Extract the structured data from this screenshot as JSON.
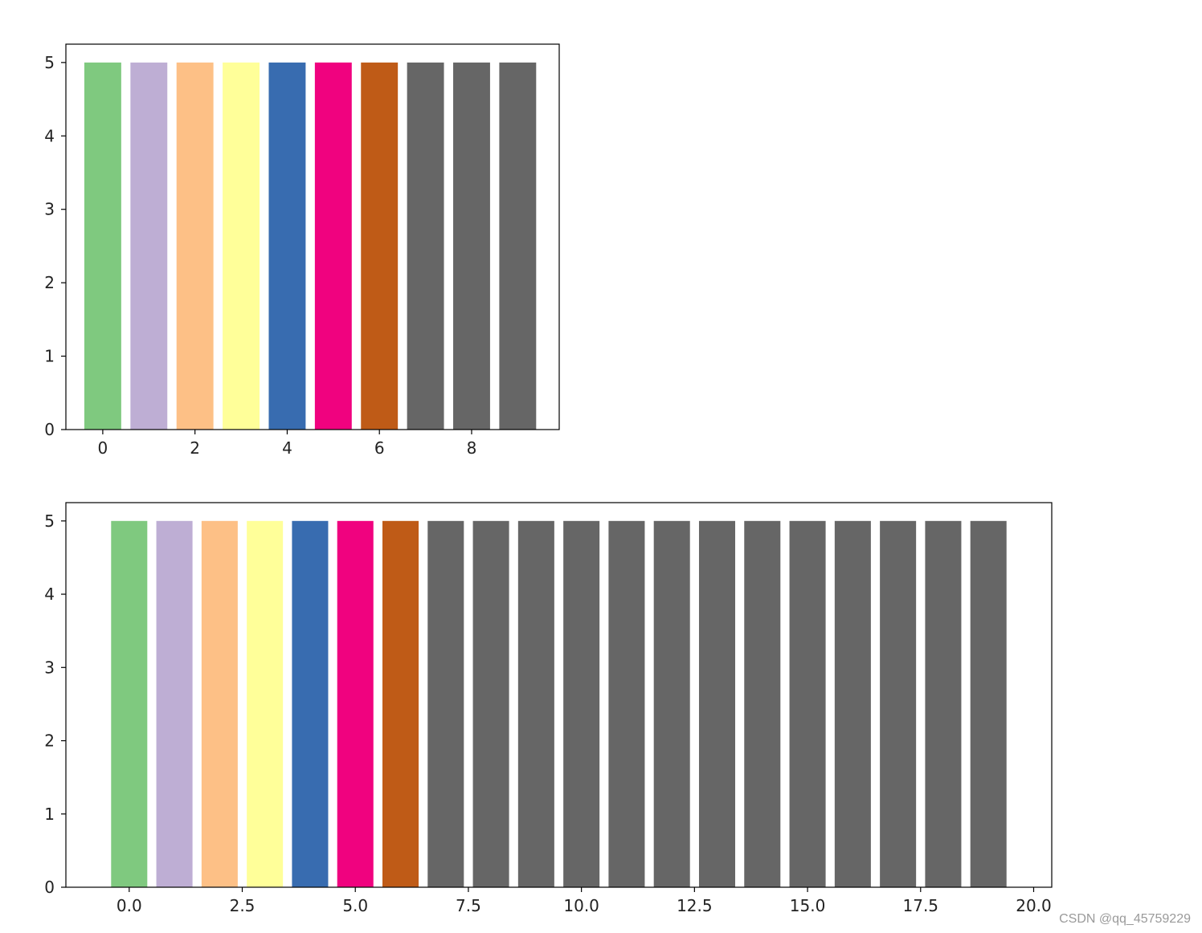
{
  "watermark": "CSDN @qq_45759229",
  "chart_data": [
    {
      "type": "bar",
      "x": [
        0,
        1,
        2,
        3,
        4,
        5,
        6,
        7,
        8,
        9
      ],
      "values": [
        5,
        5,
        5,
        5,
        5,
        5,
        5,
        5,
        5,
        5
      ],
      "colors": [
        "#7fc97f",
        "#beaed4",
        "#fdc086",
        "#ffff99",
        "#386cb0",
        "#f0027f",
        "#bf5b17",
        "#666666",
        "#666666",
        "#666666"
      ],
      "title": "",
      "xlabel": "",
      "ylabel": "",
      "xlim": [
        -0.8,
        9.9
      ],
      "ylim": [
        0,
        5.25
      ],
      "xticks": [
        0,
        2,
        4,
        6,
        8
      ],
      "xtick_labels": [
        "0",
        "2",
        "4",
        "6",
        "8"
      ],
      "yticks": [
        0,
        1,
        2,
        3,
        4,
        5
      ],
      "ytick_labels": [
        "0",
        "1",
        "2",
        "3",
        "4",
        "5"
      ],
      "grid": false
    },
    {
      "type": "bar",
      "x": [
        0,
        1,
        2,
        3,
        4,
        5,
        6,
        7,
        8,
        9,
        10,
        11,
        12,
        13,
        14,
        15,
        16,
        17,
        18,
        19
      ],
      "values": [
        5,
        5,
        5,
        5,
        5,
        5,
        5,
        5,
        5,
        5,
        5,
        5,
        5,
        5,
        5,
        5,
        5,
        5,
        5,
        5
      ],
      "colors": [
        "#7fc97f",
        "#beaed4",
        "#fdc086",
        "#ffff99",
        "#386cb0",
        "#f0027f",
        "#bf5b17",
        "#666666",
        "#666666",
        "#666666",
        "#666666",
        "#666666",
        "#666666",
        "#666666",
        "#666666",
        "#666666",
        "#666666",
        "#666666",
        "#666666",
        "#666666"
      ],
      "title": "",
      "xlabel": "",
      "ylabel": "",
      "xlim": [
        -1.4,
        20.4
      ],
      "ylim": [
        0,
        5.25
      ],
      "xticks": [
        0,
        2.5,
        5,
        7.5,
        10,
        12.5,
        15,
        17.5,
        20
      ],
      "xtick_labels": [
        "0.0",
        "2.5",
        "5.0",
        "7.5",
        "10.0",
        "12.5",
        "15.0",
        "17.5",
        "20.0"
      ],
      "yticks": [
        0,
        1,
        2,
        3,
        4,
        5
      ],
      "ytick_labels": [
        "0",
        "1",
        "2",
        "3",
        "4",
        "5"
      ],
      "grid": false
    }
  ]
}
